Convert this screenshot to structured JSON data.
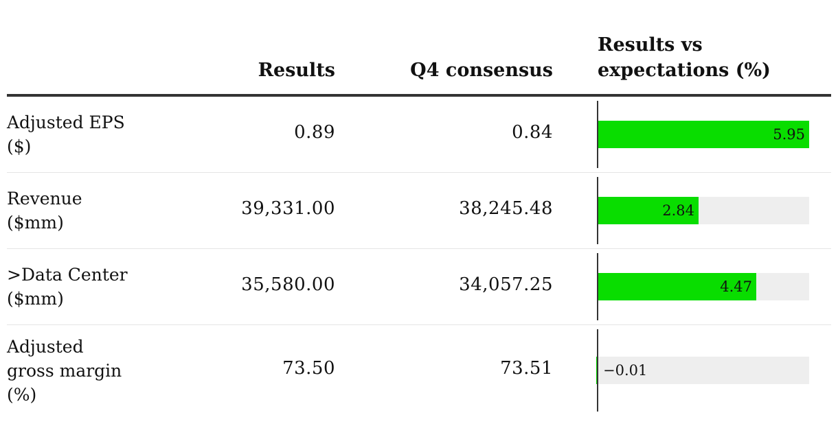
{
  "columns": {
    "results": "Results",
    "consensus": "Q4 consensus",
    "vs": "Results vs\nexpectations (%)"
  },
  "colors": {
    "bar": "#09dd00",
    "track": "#eeeeee",
    "axis": "#333333"
  },
  "chart_data": {
    "type": "table",
    "columns": [
      "Results",
      "Q4 consensus",
      "Results vs expectations (%)"
    ],
    "xlim": [
      0,
      5.95
    ],
    "rows": [
      {
        "label": "Adjusted EPS\n($)",
        "results": "0.89",
        "consensus": "0.84",
        "pct": 5.95,
        "pct_label": "5.95"
      },
      {
        "label": "Revenue\n($mm)",
        "results": "39,331.00",
        "consensus": "38,245.48",
        "pct": 2.84,
        "pct_label": "2.84"
      },
      {
        "label": ">Data Center\n($mm)",
        "results": "35,580.00",
        "consensus": "34,057.25",
        "pct": 4.47,
        "pct_label": "4.47"
      },
      {
        "label": "Adjusted\ngross margin\n(%)",
        "results": "73.50",
        "consensus": "73.51",
        "pct": -0.01,
        "pct_label": "−0.01"
      }
    ]
  }
}
